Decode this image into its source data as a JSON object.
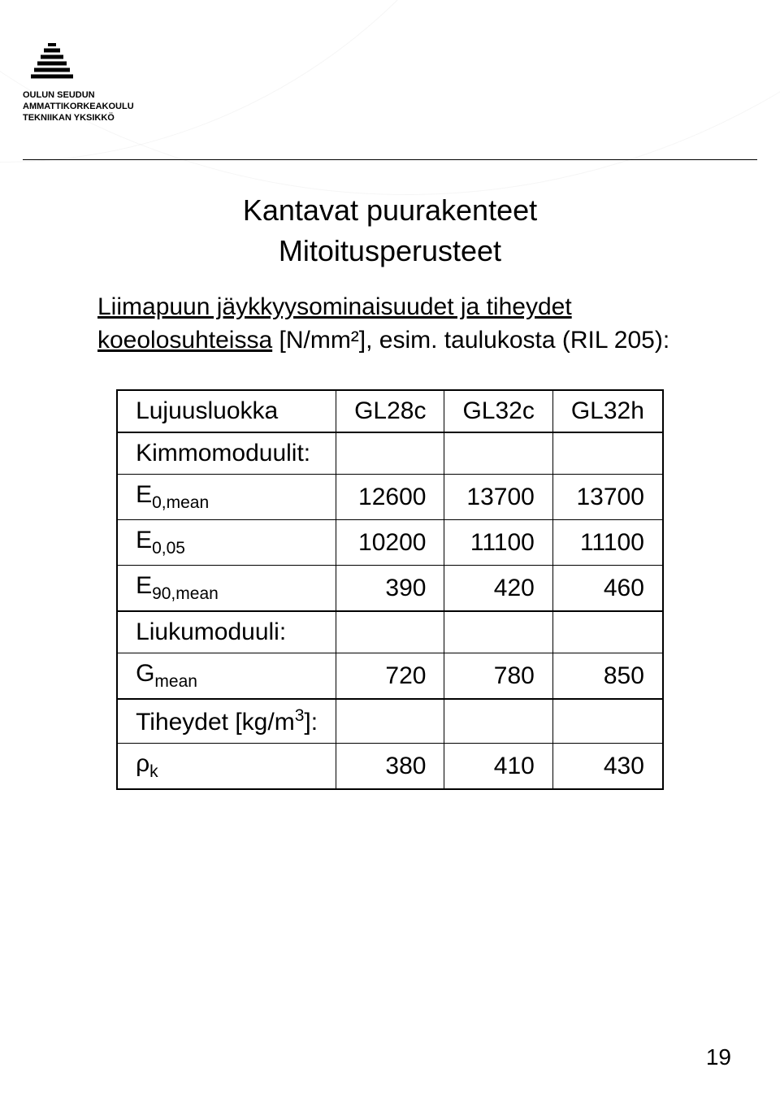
{
  "header": {
    "org_lines": [
      "OULUN SEUDUN",
      "AMMATTIKORKEAKOULU",
      "TEKNIIKAN YKSIKKÖ"
    ]
  },
  "title": "Kantavat puurakenteet",
  "subtitle": "Mitoitusperusteet",
  "lead_underlined": "Liimapuun jäykkyysominaisuudet ja tiheydet koeolosuhteissa",
  "lead_tail": " [N/mm²], esim. taulukosta (RIL 205):",
  "table": {
    "col_header_label": "Lujuusluokka",
    "col_headers": [
      "GL28c",
      "GL32c",
      "GL32h"
    ],
    "groups": [
      {
        "label": "Kimmomoduulit:",
        "rows": [
          {
            "label_html": "E<span class=\"sub\">0,mean</span>",
            "values": [
              "12600",
              "13700",
              "13700"
            ]
          },
          {
            "label_html": "E<span class=\"sub\">0,05</span>",
            "values": [
              "10200",
              "11100",
              "11100"
            ]
          },
          {
            "label_html": "E<span class=\"sub\">90,mean</span>",
            "values": [
              "390",
              "420",
              "460"
            ]
          }
        ]
      },
      {
        "label": "Liukumoduuli:",
        "rows": [
          {
            "label_html": "G<span class=\"sub\">mean</span>",
            "values": [
              "720",
              "780",
              "850"
            ]
          }
        ]
      },
      {
        "label_html": "Tiheydet [kg/m<span class=\"sup\">3</span>]:",
        "rows": [
          {
            "label_html": "ρ<span class=\"sub\">k</span>",
            "values": [
              "380",
              "410",
              "430"
            ]
          }
        ]
      }
    ]
  },
  "page_number": "19"
}
